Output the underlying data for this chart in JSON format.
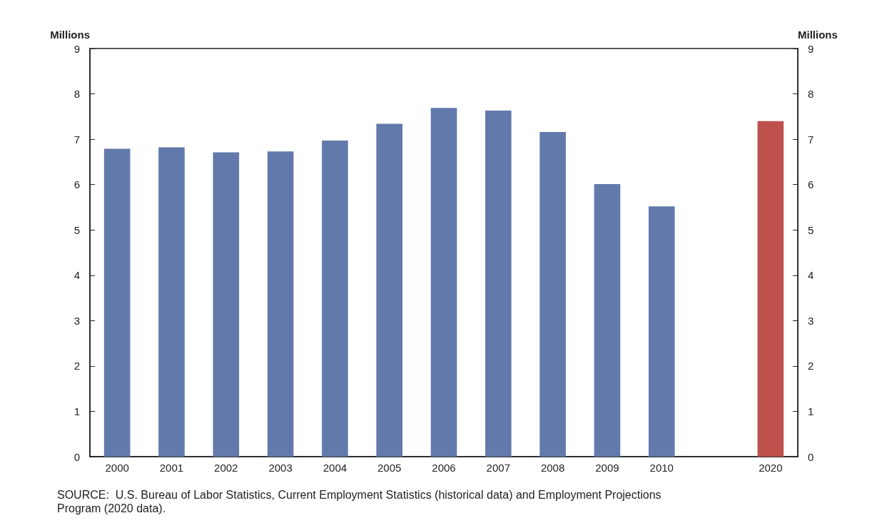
{
  "chart_data": {
    "type": "bar",
    "categories": [
      "2000",
      "2001",
      "2002",
      "2003",
      "2004",
      "2005",
      "2006",
      "2007",
      "2008",
      "2009",
      "2010",
      null,
      "2020"
    ],
    "values": [
      6.79,
      6.82,
      6.71,
      6.73,
      6.97,
      7.34,
      7.69,
      7.63,
      7.16,
      6.01,
      5.52,
      null,
      7.4
    ],
    "colors": [
      "#6279ac",
      "#6279ac",
      "#6279ac",
      "#6279ac",
      "#6279ac",
      "#6279ac",
      "#6279ac",
      "#6279ac",
      "#6279ac",
      "#6279ac",
      "#6279ac",
      "#6279ac",
      "#be514b"
    ],
    "ylabel": "Millions",
    "y2label": "Millions",
    "ylim": [
      0,
      9
    ],
    "yticks": [
      0,
      1,
      2,
      3,
      4,
      5,
      6,
      7,
      8,
      9
    ],
    "y2lim": [
      0,
      9
    ],
    "y2ticks": [
      0,
      1,
      2,
      3,
      4,
      5,
      6,
      7,
      8,
      9
    ],
    "grid": false,
    "annotations": [
      "SOURCE:  U.S. Bureau of Labor Statistics, Current Employment Statistics (historical data) and Employment Projections\nProgram (2020 data)."
    ]
  }
}
